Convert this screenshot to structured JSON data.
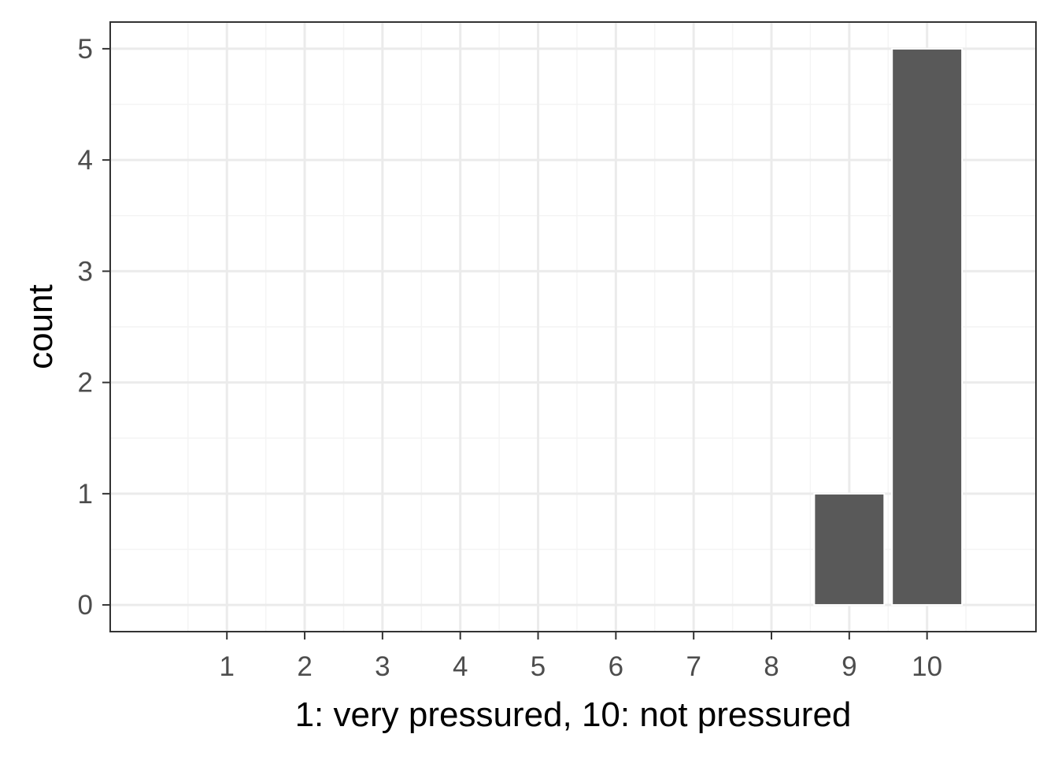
{
  "chart_data": {
    "type": "bar",
    "title": "",
    "xlabel": "1: very pressured, 10: not pressured",
    "ylabel": "count",
    "categories": [
      "1",
      "2",
      "3",
      "4",
      "5",
      "6",
      "7",
      "8",
      "9",
      "10"
    ],
    "values": [
      0,
      0,
      0,
      0,
      0,
      0,
      0,
      0,
      1,
      5
    ],
    "xlim": [
      -0.5,
      11.4
    ],
    "ylim": [
      -0.24,
      5.24
    ],
    "yticks": [
      "0",
      "1",
      "2",
      "3",
      "4",
      "5"
    ],
    "grid": true,
    "legend": "none",
    "colors": {
      "bar": "#595959",
      "bar_outline": "#ffffff",
      "panel_border": "#333333",
      "grid_major": "#ebebeb",
      "grid_minor": "#f4f4f4",
      "tick": "#333333"
    }
  }
}
